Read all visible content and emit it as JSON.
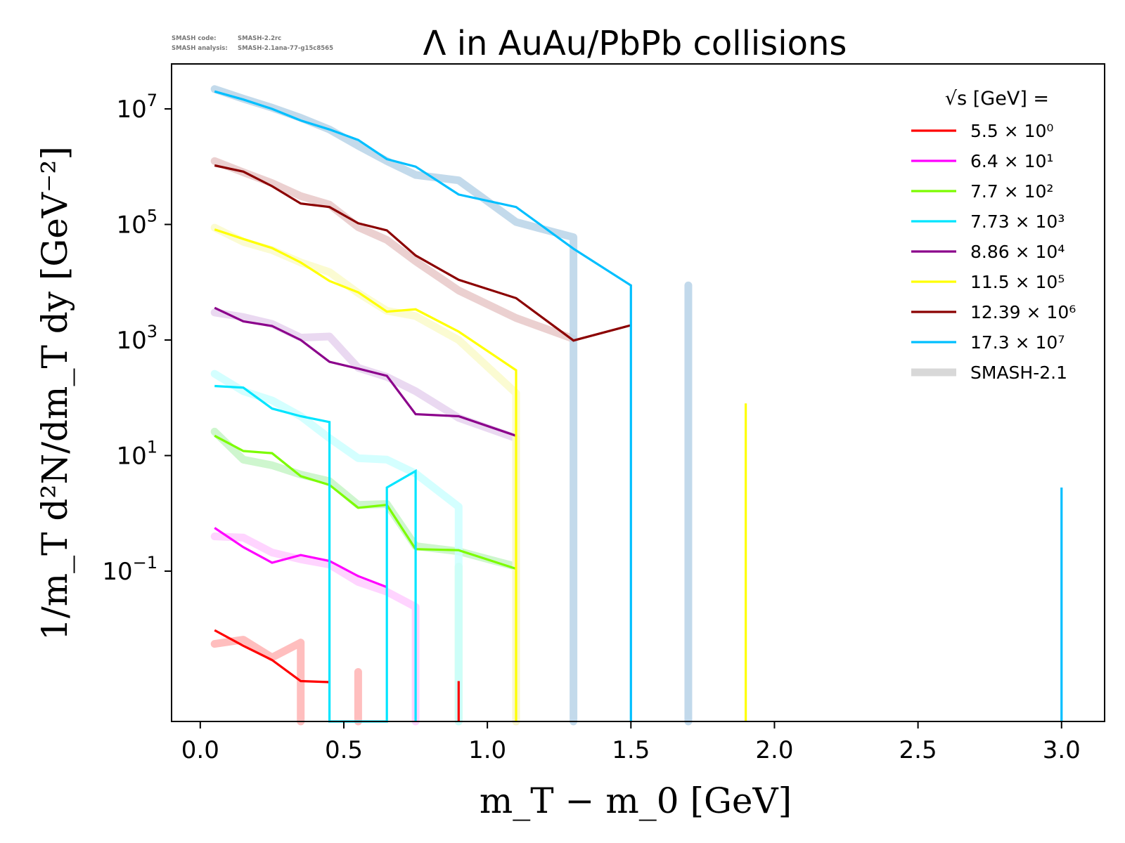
{
  "meta_lines": [
    {
      "label": "SMASH code:",
      "value": "SMASH-2.2rc"
    },
    {
      "label": "SMASH analysis:",
      "value": "SMASH-2.1ana-77-g15c8565"
    }
  ],
  "chart_data": {
    "type": "line",
    "title": "Λ in AuAu/PbPb collisions",
    "xlabel": "m_T − m_0 [GeV]",
    "ylabel": "1/m_T d²N/dm_T dy [GeV⁻²]",
    "xlim": [
      -0.1,
      3.15
    ],
    "ylim": [
      0.00025,
      60000000
    ],
    "y_scale": "log",
    "grid": false,
    "legend_placement": "top-right",
    "legend_title": "√s [GeV] =",
    "x_ticks": [
      {
        "value": 0.0,
        "label": "0.0"
      },
      {
        "value": 0.5,
        "label": "0.5"
      },
      {
        "value": 1.0,
        "label": "1.0"
      },
      {
        "value": 1.5,
        "label": "1.5"
      },
      {
        "value": 2.0,
        "label": "2.0"
      },
      {
        "value": 2.5,
        "label": "2.5"
      },
      {
        "value": 3.0,
        "label": "3.0"
      }
    ],
    "y_ticks": [
      {
        "value": 10000000,
        "base": "10",
        "exp": "7"
      },
      {
        "value": 100000,
        "base": "10",
        "exp": "5"
      },
      {
        "value": 1000,
        "base": "10",
        "exp": "3"
      },
      {
        "value": 10,
        "base": "10",
        "exp": "1"
      },
      {
        "value": 0.1,
        "base": "10",
        "exp": "−1"
      }
    ],
    "series": [
      {
        "name": "5.5 × 10⁰",
        "color": "#ff0000",
        "kind": "data",
        "x": [
          0.05,
          0.15,
          0.25,
          0.35,
          0.45
        ],
        "y": [
          0.0095,
          0.0051,
          0.0029,
          0.00125,
          0.0012
        ],
        "spikes": [
          {
            "x": 0.9,
            "top": 0.00125
          }
        ]
      },
      {
        "name": "6.4 × 10¹",
        "color": "#ff00ff",
        "kind": "data",
        "x": [
          0.05,
          0.15,
          0.25,
          0.35,
          0.45,
          0.55,
          0.65
        ],
        "y": [
          0.56,
          0.26,
          0.14,
          0.19,
          0.15,
          0.082,
          0.053
        ],
        "spikes": []
      },
      {
        "name": "7.7 × 10²",
        "color": "#7cfc00",
        "kind": "data",
        "x": [
          0.05,
          0.15,
          0.25,
          0.35,
          0.45,
          0.55,
          0.65,
          0.75,
          0.9,
          1.1
        ],
        "y": [
          22,
          12,
          11,
          4.4,
          3.1,
          1.25,
          1.4,
          0.24,
          0.23,
          0.11
        ],
        "spikes": []
      },
      {
        "name": "7.73 × 10³",
        "color": "#00e5ff",
        "kind": "data",
        "x": [
          0.05,
          0.15,
          0.25,
          0.35,
          0.45,
          0.45,
          0.65,
          0.65,
          0.75,
          0.75
        ],
        "y": [
          160,
          150,
          65,
          48,
          38,
          0.00025,
          0.00025,
          2.8,
          5.4,
          0.00025
        ],
        "spikes": []
      },
      {
        "name": "8.86 × 10⁴",
        "color": "#8b008b",
        "kind": "data",
        "x": [
          0.05,
          0.15,
          0.25,
          0.35,
          0.45,
          0.55,
          0.65,
          0.75,
          0.9,
          1.1
        ],
        "y": [
          3600,
          2100,
          1750,
          1000,
          420,
          320,
          240,
          52,
          48,
          22
        ],
        "spikes": []
      },
      {
        "name": "11.5 × 10⁵",
        "color": "#ffff00",
        "kind": "data",
        "x": [
          0.05,
          0.15,
          0.25,
          0.35,
          0.45,
          0.55,
          0.65,
          0.75,
          0.9,
          1.1,
          1.1
        ],
        "y": [
          82000,
          56000,
          39000,
          22000,
          10500,
          6700,
          3100,
          3400,
          1400,
          300,
          0.00025
        ],
        "spikes": [
          {
            "x": 1.9,
            "top": 80
          }
        ]
      },
      {
        "name": "12.39 × 10⁶",
        "color": "#8b0000",
        "kind": "data",
        "x": [
          0.05,
          0.15,
          0.25,
          0.35,
          0.45,
          0.55,
          0.65,
          0.75,
          0.9,
          1.1,
          1.3,
          1.5
        ],
        "y": [
          1050000,
          820000,
          460000,
          230000,
          200000,
          105000,
          79000,
          29000,
          11000,
          5300,
          980,
          1800
        ],
        "spikes": []
      },
      {
        "name": "17.3 × 10⁷",
        "color": "#00bfff",
        "kind": "data",
        "x": [
          0.05,
          0.15,
          0.25,
          0.35,
          0.45,
          0.55,
          0.65,
          0.75,
          0.9,
          1.1,
          1.3,
          1.5,
          1.5
        ],
        "y": [
          20000000,
          14500000,
          10000000,
          6300000,
          4400000,
          2900000,
          1350000,
          1000000,
          330000,
          200000,
          38000,
          8800,
          0.00025
        ],
        "spikes": [
          {
            "x": 3.0,
            "top": 2.8
          }
        ]
      },
      {
        "name": "SMASH-2.1",
        "color": "#d8d8d8",
        "kind": "legend_only",
        "x": [],
        "y": [],
        "spikes": []
      }
    ],
    "reference_bands": [
      {
        "color": "#ffb3b3",
        "x": [
          0.05,
          0.15,
          0.25,
          0.35,
          0.35
        ],
        "y": [
          0.0055,
          0.0065,
          0.0032,
          0.0058,
          0.00025
        ],
        "spikes": [
          {
            "x": 0.55,
            "top": 0.0018
          }
        ]
      },
      {
        "color": "#ffccff",
        "x": [
          0.05,
          0.15,
          0.25,
          0.35,
          0.45,
          0.55,
          0.65,
          0.75,
          0.75
        ],
        "y": [
          0.4,
          0.38,
          0.21,
          0.16,
          0.13,
          0.065,
          0.044,
          0.024,
          0.00025
        ],
        "spikes": []
      },
      {
        "color": "#c6f5c6",
        "x": [
          0.05,
          0.15,
          0.25,
          0.35,
          0.45,
          0.55,
          0.65,
          0.75,
          0.9,
          1.1
        ],
        "y": [
          26,
          8.5,
          6.8,
          4.7,
          3.6,
          1.4,
          1.45,
          0.27,
          0.22,
          0.12
        ],
        "spikes": [
          {
            "x": 0.9,
            "top": 0.12
          }
        ]
      },
      {
        "color": "#ccffff",
        "x": [
          0.05,
          0.15,
          0.25,
          0.35,
          0.45,
          0.55,
          0.65,
          0.75,
          0.9,
          0.9
        ],
        "y": [
          260,
          130,
          90,
          48,
          20,
          9,
          8.5,
          4.9,
          1.3,
          0.00025
        ],
        "spikes": []
      },
      {
        "color": "#e6d2ee",
        "x": [
          0.05,
          0.15,
          0.25,
          0.35,
          0.45,
          0.55,
          0.65,
          0.75,
          0.9,
          1.1,
          1.1
        ],
        "y": [
          3000,
          2500,
          1900,
          1100,
          1150,
          330,
          230,
          130,
          45,
          20,
          0.00025
        ],
        "spikes": []
      },
      {
        "color": "#fafaca",
        "x": [
          0.05,
          0.15,
          0.25,
          0.35,
          0.45,
          0.55,
          0.65,
          0.75,
          0.9,
          1.1,
          1.1
        ],
        "y": [
          88000,
          50000,
          36000,
          22000,
          15000,
          6500,
          3200,
          2600,
          1000,
          120,
          0.00025
        ],
        "spikes": []
      },
      {
        "color": "#e8c8c8",
        "x": [
          0.05,
          0.15,
          0.25,
          0.35,
          0.45,
          0.55,
          0.65,
          0.75,
          0.9,
          1.1,
          1.3
        ],
        "y": [
          1250000,
          800000,
          520000,
          310000,
          220000,
          90000,
          54000,
          23000,
          7200,
          2400,
          1050
        ],
        "spikes": []
      },
      {
        "color": "#b8d3e8",
        "x": [
          0.05,
          0.15,
          0.25,
          0.35,
          0.45,
          0.55,
          0.65,
          0.75,
          0.9,
          1.1,
          1.3,
          1.3
        ],
        "y": [
          22000000,
          15000000,
          10500000,
          7000000,
          4400000,
          2300000,
          1250000,
          720000,
          580000,
          110000,
          60000,
          0.00025
        ],
        "spikes": [
          {
            "x": 1.7,
            "top": 8800
          }
        ]
      }
    ]
  }
}
